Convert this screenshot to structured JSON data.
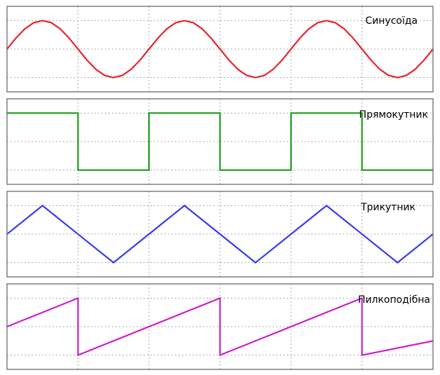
{
  "chart_data": [
    {
      "type": "line",
      "name": "sine",
      "label": "Синусоїда",
      "color": "#e8232a",
      "xlim": [
        0,
        6
      ],
      "ylim": [
        -1.5,
        1.5
      ],
      "x_grid": [
        1,
        2,
        3,
        4,
        5
      ],
      "y_grid": [
        -1,
        0,
        1
      ],
      "grid": "dotted",
      "x": [
        0,
        0.125,
        0.25,
        0.375,
        0.5,
        0.625,
        0.75,
        0.875,
        1,
        1.125,
        1.25,
        1.375,
        1.5,
        1.625,
        1.75,
        1.875,
        2,
        2.125,
        2.25,
        2.375,
        2.5,
        2.625,
        2.75,
        2.875,
        3,
        3.125,
        3.25,
        3.375,
        3.5,
        3.625,
        3.75,
        3.875,
        4,
        4.125,
        4.25,
        4.375,
        4.5,
        4.625,
        4.75,
        4.875,
        5,
        5.125,
        5.25,
        5.375,
        5.5,
        5.625,
        5.75,
        5.875,
        6
      ],
      "y": [
        0,
        0.383,
        0.707,
        0.924,
        1,
        0.924,
        0.707,
        0.383,
        0,
        -0.383,
        -0.707,
        -0.924,
        -1,
        -0.924,
        -0.707,
        -0.383,
        0,
        0.383,
        0.707,
        0.924,
        1,
        0.924,
        0.707,
        0.383,
        0,
        -0.383,
        -0.707,
        -0.924,
        -1,
        -0.924,
        -0.707,
        -0.383,
        0,
        0.383,
        0.707,
        0.924,
        1,
        0.924,
        0.707,
        0.383,
        0,
        -0.383,
        -0.707,
        -0.924,
        -1,
        -0.924,
        -0.707,
        -0.383,
        0
      ]
    },
    {
      "type": "line",
      "name": "square",
      "label": "Прямокутник",
      "color": "#1a9a1a",
      "xlim": [
        0,
        6
      ],
      "ylim": [
        -1.5,
        1.5
      ],
      "x_grid": [
        1,
        2,
        3,
        4,
        5
      ],
      "y_grid": [
        -1,
        0,
        1
      ],
      "grid": "dotted",
      "x": [
        0,
        1,
        1,
        2,
        2,
        3,
        3,
        4,
        4,
        5,
        5,
        6
      ],
      "y": [
        1,
        1,
        -1,
        -1,
        1,
        1,
        -1,
        -1,
        1,
        1,
        -1,
        -1
      ]
    },
    {
      "type": "line",
      "name": "triangle",
      "label": "Трикутник",
      "color": "#3c3cf0",
      "xlim": [
        0,
        6
      ],
      "ylim": [
        -1.5,
        1.5
      ],
      "x_grid": [
        1,
        2,
        3,
        4,
        5
      ],
      "y_grid": [
        -1,
        0,
        1
      ],
      "grid": "dotted",
      "x": [
        0,
        0.5,
        1.5,
        2.5,
        3.5,
        4.5,
        5.5,
        6
      ],
      "y": [
        0,
        1,
        -1,
        1,
        -1,
        1,
        -1,
        0
      ]
    },
    {
      "type": "line",
      "name": "sawtooth",
      "label": "Пилкоподібна",
      "color": "#cc1ecc",
      "xlim": [
        0,
        6
      ],
      "ylim": [
        -1.5,
        1.5
      ],
      "x_grid": [
        1,
        2,
        3,
        4,
        5
      ],
      "y_grid": [
        -1,
        0,
        1
      ],
      "grid": "dotted",
      "x": [
        0,
        1,
        1,
        3,
        3,
        5,
        5,
        6
      ],
      "y": [
        0,
        1,
        -1,
        1,
        -1,
        1,
        -1,
        -0.5
      ]
    }
  ]
}
